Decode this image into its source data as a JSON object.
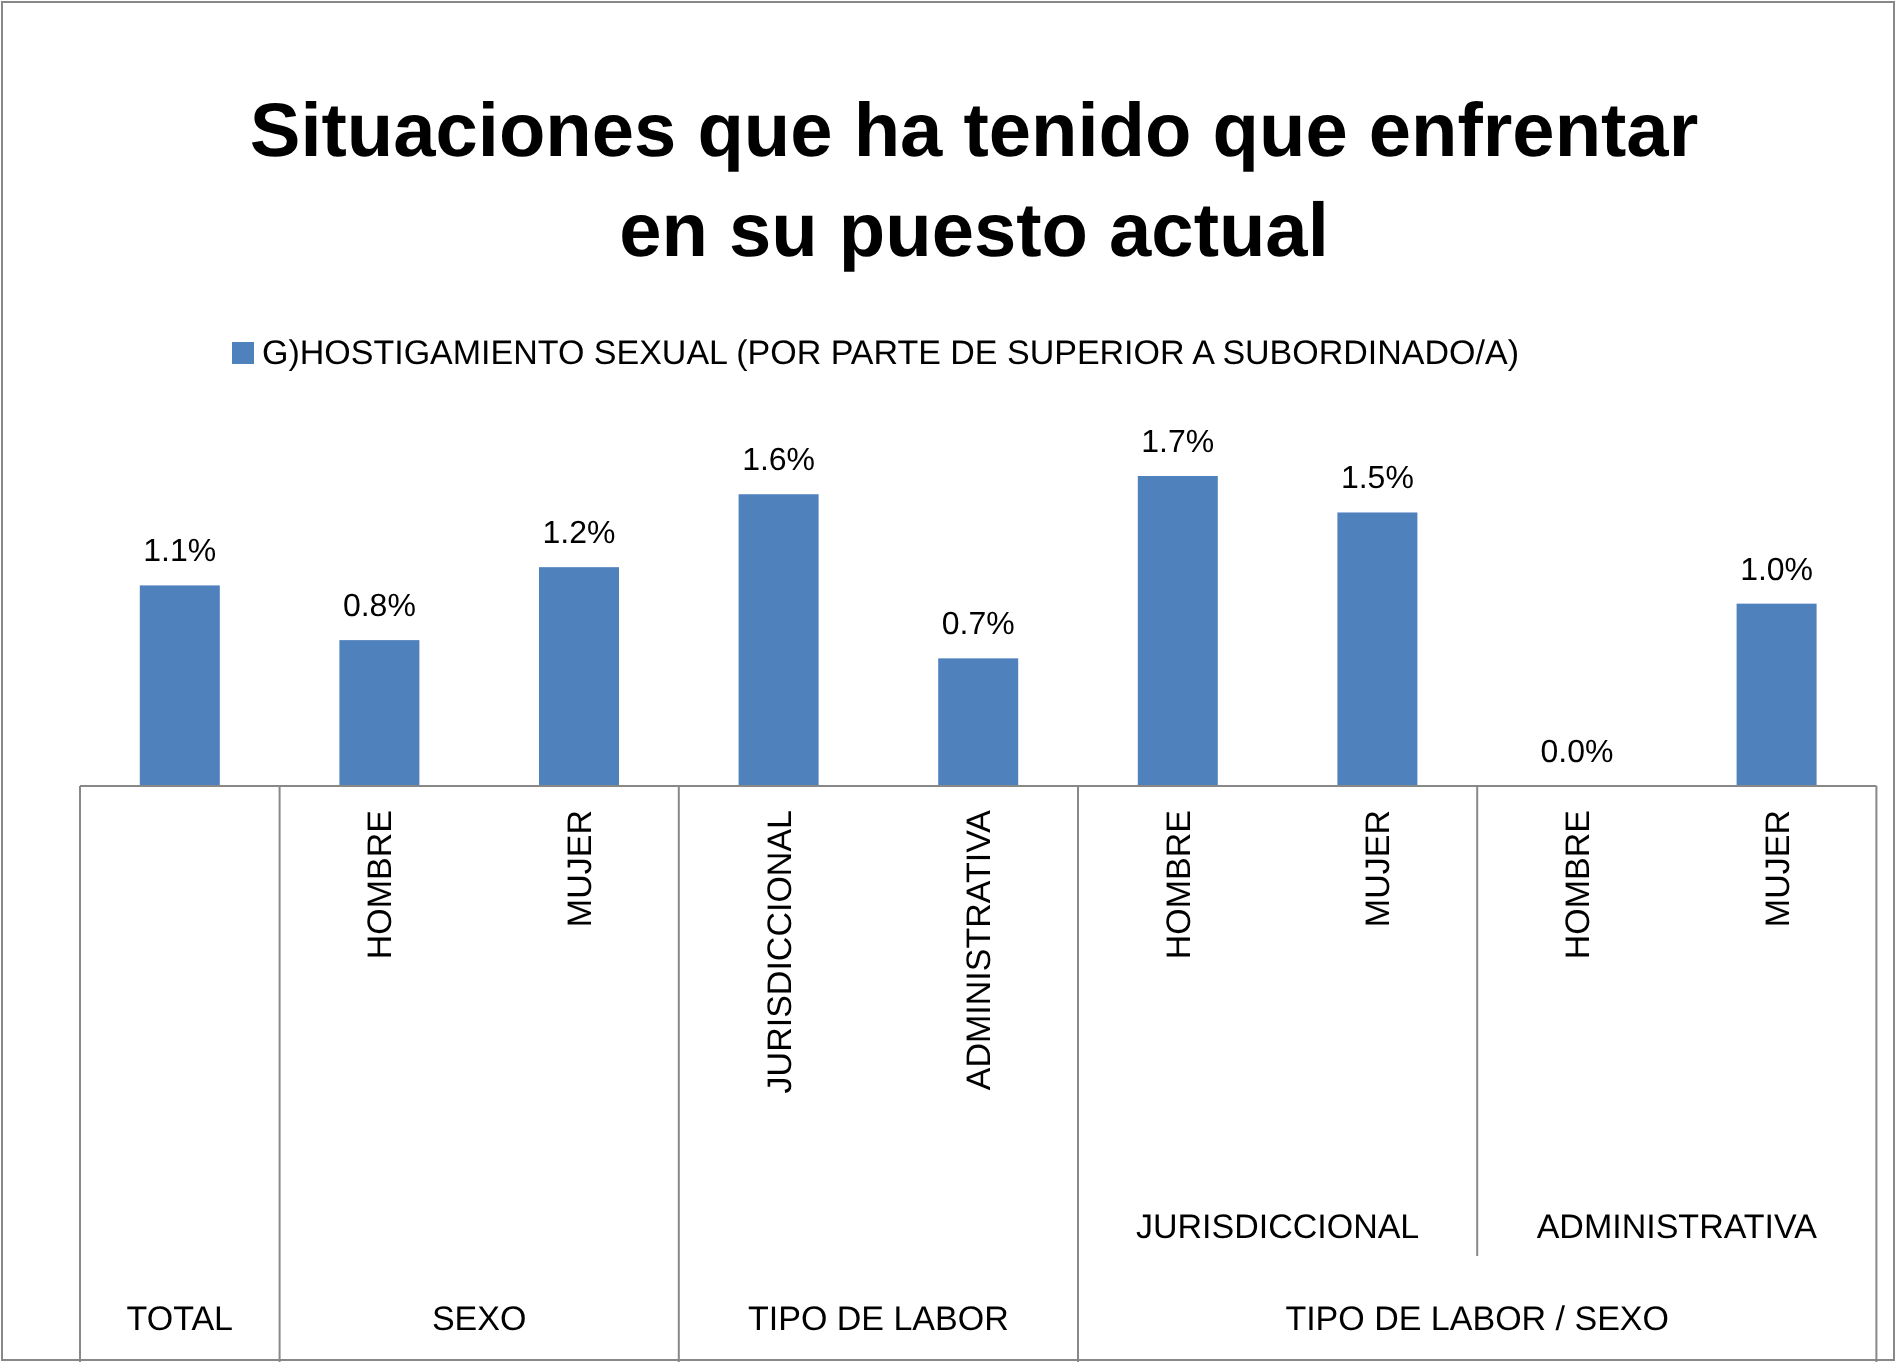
{
  "chart_data": {
    "type": "bar",
    "title": "Situaciones que ha tenido que enfrentar en su puesto actual",
    "categories": [
      null,
      "HOMBRE",
      "MUJER",
      "JURISDICCIONAL",
      "ADMINISTRATIVA",
      "HOMBRE",
      "MUJER",
      "HOMBRE",
      "MUJER"
    ],
    "series": [
      {
        "name": "G)HOSTIGAMIENTO SEXUAL (POR PARTE DE SUPERIOR A SUBORDINADO/A)",
        "color": "#4f81bd",
        "values": [
          1.1,
          0.8,
          1.2,
          1.6,
          0.7,
          1.7,
          1.5,
          0.0,
          1.0
        ],
        "value_labels": [
          "1.1%",
          "0.8%",
          "1.2%",
          "1.6%",
          "0.7%",
          "1.7%",
          "1.5%",
          "0.0%",
          "1.0%"
        ]
      }
    ],
    "annotations": [
      "JURISDICCIONAL",
      "ADMINISTRATIVA",
      "TOTAL",
      "SEXO",
      "TIPO DE LABOR",
      "TIPO DE LABOR / SEXO"
    ],
    "legend": "top"
  }
}
